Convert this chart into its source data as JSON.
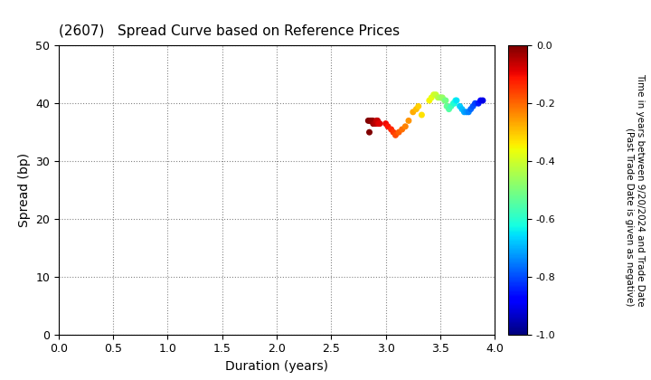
{
  "title": "(2607)   Spread Curve based on Reference Prices",
  "xlabel": "Duration (years)",
  "ylabel": "Spread (bp)",
  "xlim": [
    0.0,
    4.0
  ],
  "ylim": [
    0,
    50
  ],
  "xticks": [
    0.0,
    0.5,
    1.0,
    1.5,
    2.0,
    2.5,
    3.0,
    3.5,
    4.0
  ],
  "yticks": [
    0,
    10,
    20,
    30,
    40,
    50
  ],
  "cmap": "jet",
  "vmin": -1.0,
  "vmax": 0.0,
  "background": "#ffffff",
  "scatter_points": {
    "durations": [
      2.84,
      2.855,
      2.865,
      2.875,
      2.88,
      2.885,
      2.89,
      2.895,
      2.9,
      2.905,
      2.91,
      2.915,
      2.92,
      2.925,
      2.93,
      2.935,
      2.94,
      2.945,
      2.85,
      3.0,
      3.02,
      3.05,
      3.07,
      3.09,
      3.12,
      3.15,
      3.18,
      3.21,
      3.25,
      3.28,
      3.3,
      3.33,
      3.4,
      3.42,
      3.44,
      3.46,
      3.48,
      3.5,
      3.52,
      3.54,
      3.55,
      3.56,
      3.58,
      3.6,
      3.62,
      3.63,
      3.64,
      3.65,
      3.68,
      3.7,
      3.72,
      3.74,
      3.76,
      3.78,
      3.8,
      3.82,
      3.85,
      3.87,
      3.89
    ],
    "spreads": [
      37.0,
      37.0,
      37.0,
      37.0,
      37.0,
      36.5,
      36.5,
      36.5,
      36.5,
      36.5,
      36.5,
      37.0,
      37.0,
      37.0,
      36.5,
      36.5,
      36.5,
      36.5,
      35.0,
      36.5,
      36.0,
      35.5,
      35.0,
      34.5,
      35.0,
      35.5,
      36.0,
      37.0,
      38.5,
      39.0,
      39.5,
      38.0,
      40.5,
      41.0,
      41.5,
      41.5,
      41.0,
      41.0,
      41.0,
      40.5,
      40.5,
      39.5,
      39.0,
      39.5,
      40.0,
      40.0,
      40.5,
      40.5,
      39.5,
      39.0,
      38.5,
      38.5,
      38.5,
      39.0,
      39.5,
      40.0,
      40.0,
      40.5,
      40.5
    ],
    "time_values": [
      0.0,
      -0.005,
      -0.01,
      -0.015,
      -0.02,
      -0.025,
      -0.03,
      -0.035,
      -0.04,
      -0.045,
      -0.05,
      -0.055,
      -0.06,
      -0.065,
      -0.07,
      -0.075,
      -0.08,
      -0.085,
      -0.003,
      -0.1,
      -0.11,
      -0.13,
      -0.15,
      -0.17,
      -0.19,
      -0.21,
      -0.23,
      -0.25,
      -0.27,
      -0.29,
      -0.31,
      -0.33,
      -0.35,
      -0.37,
      -0.39,
      -0.41,
      -0.43,
      -0.45,
      -0.47,
      -0.49,
      -0.51,
      -0.53,
      -0.55,
      -0.57,
      -0.59,
      -0.61,
      -0.63,
      -0.65,
      -0.67,
      -0.69,
      -0.71,
      -0.73,
      -0.75,
      -0.77,
      -0.79,
      -0.81,
      -0.85,
      -0.88,
      -0.91
    ]
  }
}
